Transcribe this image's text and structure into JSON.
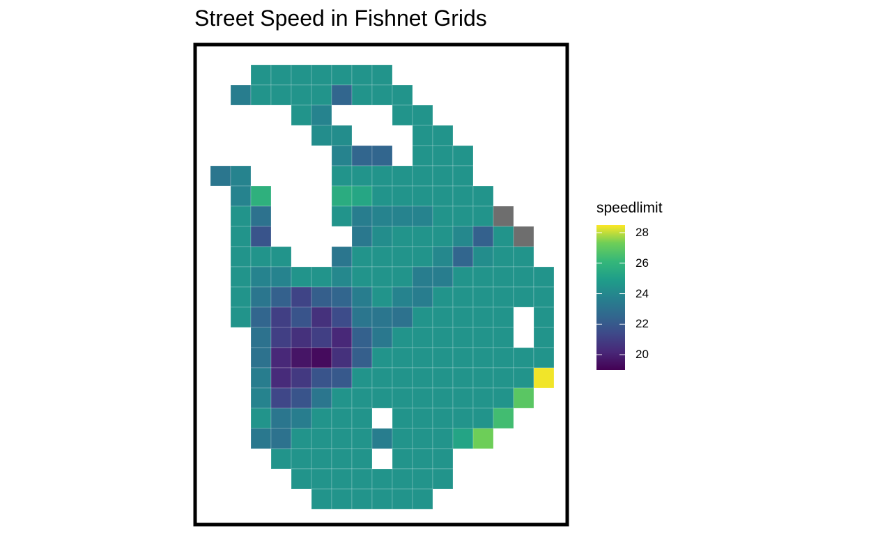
{
  "title": "Street Speed in Fishnet Grids",
  "chart_data": {
    "type": "heatmap",
    "title": "Street Speed in Fishnet Grids",
    "xlabel": "",
    "ylabel": "",
    "value_field": "speedlimit",
    "na_color": "#6e6e6e",
    "legend": {
      "title": "speedlimit",
      "placement": "right",
      "ticks": [
        20,
        22,
        24,
        26,
        28
      ],
      "range": [
        19.0,
        28.5
      ],
      "palette": "viridis"
    },
    "grid": {
      "columns": 17,
      "rows": 22,
      "cells": [
        [
          null,
          null,
          24.5,
          24.5,
          24.5,
          24.5,
          24.5,
          24.5,
          24.5,
          null,
          null,
          null,
          null,
          null,
          null,
          null,
          null
        ],
        [
          null,
          23.5,
          24.5,
          24.5,
          24.5,
          24.5,
          22.5,
          24.5,
          24.5,
          24.5,
          null,
          null,
          null,
          null,
          null,
          null,
          null
        ],
        [
          null,
          null,
          null,
          null,
          24.5,
          23.8,
          null,
          null,
          null,
          24.5,
          24.5,
          null,
          null,
          null,
          null,
          null,
          null
        ],
        [
          null,
          null,
          null,
          null,
          null,
          24.2,
          24.2,
          null,
          null,
          null,
          24.5,
          24.5,
          null,
          null,
          null,
          null,
          null
        ],
        [
          null,
          null,
          null,
          null,
          null,
          null,
          23.8,
          22.5,
          22.5,
          null,
          24.5,
          24.5,
          24.5,
          null,
          null,
          null,
          null
        ],
        [
          23.2,
          23.8,
          null,
          null,
          null,
          null,
          24.5,
          24.5,
          24.5,
          24.5,
          24.5,
          24.5,
          24.5,
          null,
          null,
          null,
          null
        ],
        [
          null,
          23.8,
          25.8,
          null,
          null,
          null,
          25.6,
          25.3,
          24.5,
          24.5,
          24.5,
          24.5,
          24.5,
          24.5,
          null,
          null,
          null
        ],
        [
          null,
          24.5,
          23.0,
          null,
          null,
          null,
          24.5,
          23.5,
          23.8,
          23.8,
          23.8,
          24.5,
          24.5,
          24.5,
          "NA",
          null,
          null
        ],
        [
          null,
          24.5,
          21.8,
          null,
          null,
          null,
          null,
          23.3,
          24.2,
          24.5,
          24.5,
          24.5,
          24.0,
          22.3,
          24.5,
          "NA",
          null
        ],
        [
          null,
          24.5,
          24.5,
          24.5,
          null,
          null,
          23.2,
          24.5,
          24.5,
          24.5,
          24.5,
          24.0,
          22.5,
          24.2,
          24.5,
          24.5,
          null
        ],
        [
          null,
          24.5,
          23.8,
          23.8,
          24.5,
          24.5,
          24.0,
          24.5,
          24.5,
          24.5,
          23.5,
          23.5,
          24.5,
          24.5,
          24.5,
          24.5,
          24.5
        ],
        [
          null,
          24.5,
          23.2,
          22.3,
          21.2,
          22.2,
          22.5,
          23.5,
          24.5,
          23.8,
          23.5,
          24.5,
          24.5,
          24.5,
          24.5,
          24.5,
          24.5
        ],
        [
          null,
          24.5,
          22.5,
          21.0,
          21.8,
          20.5,
          21.5,
          23.2,
          23.2,
          23.0,
          24.5,
          24.5,
          24.5,
          24.5,
          24.5,
          null,
          24.5
        ],
        [
          null,
          null,
          23.0,
          21.0,
          20.5,
          21.0,
          20.2,
          22.3,
          23.3,
          24.5,
          24.5,
          24.5,
          24.5,
          24.5,
          24.5,
          null,
          24.5
        ],
        [
          null,
          null,
          23.0,
          20.2,
          19.6,
          19.3,
          20.5,
          22.2,
          24.5,
          24.5,
          24.5,
          24.5,
          24.5,
          24.5,
          24.5,
          24.5,
          24.5
        ],
        [
          null,
          null,
          23.5,
          20.3,
          20.8,
          21.8,
          22.0,
          24.5,
          24.5,
          24.5,
          24.5,
          24.5,
          24.5,
          24.5,
          24.5,
          24.5,
          28.4
        ],
        [
          null,
          null,
          23.8,
          21.3,
          21.8,
          23.2,
          24.5,
          24.5,
          24.5,
          24.5,
          24.5,
          24.5,
          24.5,
          24.5,
          24.5,
          26.9,
          null
        ],
        [
          null,
          null,
          24.5,
          23.2,
          23.5,
          24.5,
          24.5,
          24.5,
          null,
          24.5,
          24.5,
          24.5,
          24.5,
          24.5,
          26.4,
          null,
          null
        ],
        [
          null,
          null,
          23.3,
          23.0,
          24.5,
          24.5,
          24.5,
          24.5,
          23.5,
          24.5,
          24.5,
          24.5,
          25.2,
          27.3,
          null,
          null,
          null
        ],
        [
          null,
          null,
          null,
          24.5,
          24.5,
          24.5,
          24.5,
          24.5,
          null,
          24.5,
          24.5,
          24.5,
          null,
          null,
          null,
          null,
          null
        ],
        [
          null,
          null,
          null,
          null,
          24.5,
          24.5,
          24.5,
          24.5,
          24.5,
          24.5,
          24.5,
          24.5,
          null,
          null,
          null,
          null,
          null
        ],
        [
          null,
          null,
          null,
          null,
          null,
          24.5,
          24.5,
          24.5,
          24.5,
          24.5,
          24.5,
          null,
          null,
          null,
          null,
          null,
          null
        ]
      ]
    }
  }
}
